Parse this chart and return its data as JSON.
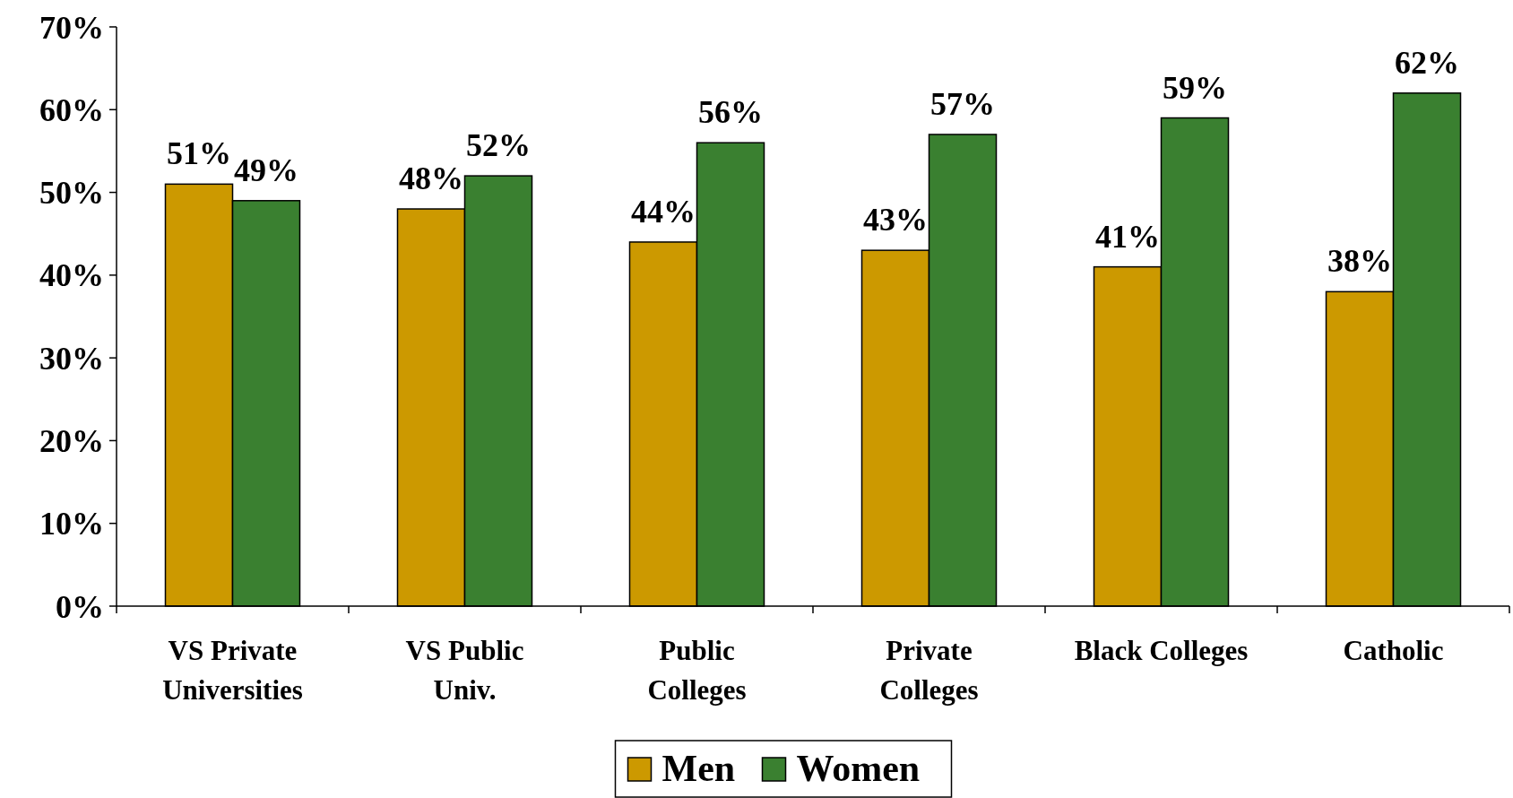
{
  "chart_data": {
    "type": "bar",
    "categories": [
      "VS Private\nUniversities",
      "VS Public\nUniv.",
      "Public\nColleges",
      "Private\nColleges",
      "Black Colleges",
      "Catholic"
    ],
    "series": [
      {
        "name": "Men",
        "color": "#cc9900",
        "values": [
          51,
          48,
          44,
          43,
          41,
          38
        ],
        "value_labels": [
          "51%",
          "48%",
          "44%",
          "43%",
          "41%",
          "38%"
        ]
      },
      {
        "name": "Women",
        "color": "#3a8030",
        "values": [
          49,
          52,
          56,
          57,
          59,
          62
        ],
        "value_labels": [
          "49%",
          "52%",
          "56%",
          "57%",
          "59%",
          "62%"
        ]
      }
    ],
    "ylim": [
      0,
      70
    ],
    "yticks": [
      {
        "value": 0,
        "label": "0%"
      },
      {
        "value": 10,
        "label": "10%"
      },
      {
        "value": 20,
        "label": "20%"
      },
      {
        "value": 30,
        "label": "30%"
      },
      {
        "value": 40,
        "label": "40%"
      },
      {
        "value": 50,
        "label": "50%"
      },
      {
        "value": 60,
        "label": "60%"
      },
      {
        "value": 70,
        "label": "70%"
      }
    ],
    "grid": false,
    "legend": "bottom"
  }
}
